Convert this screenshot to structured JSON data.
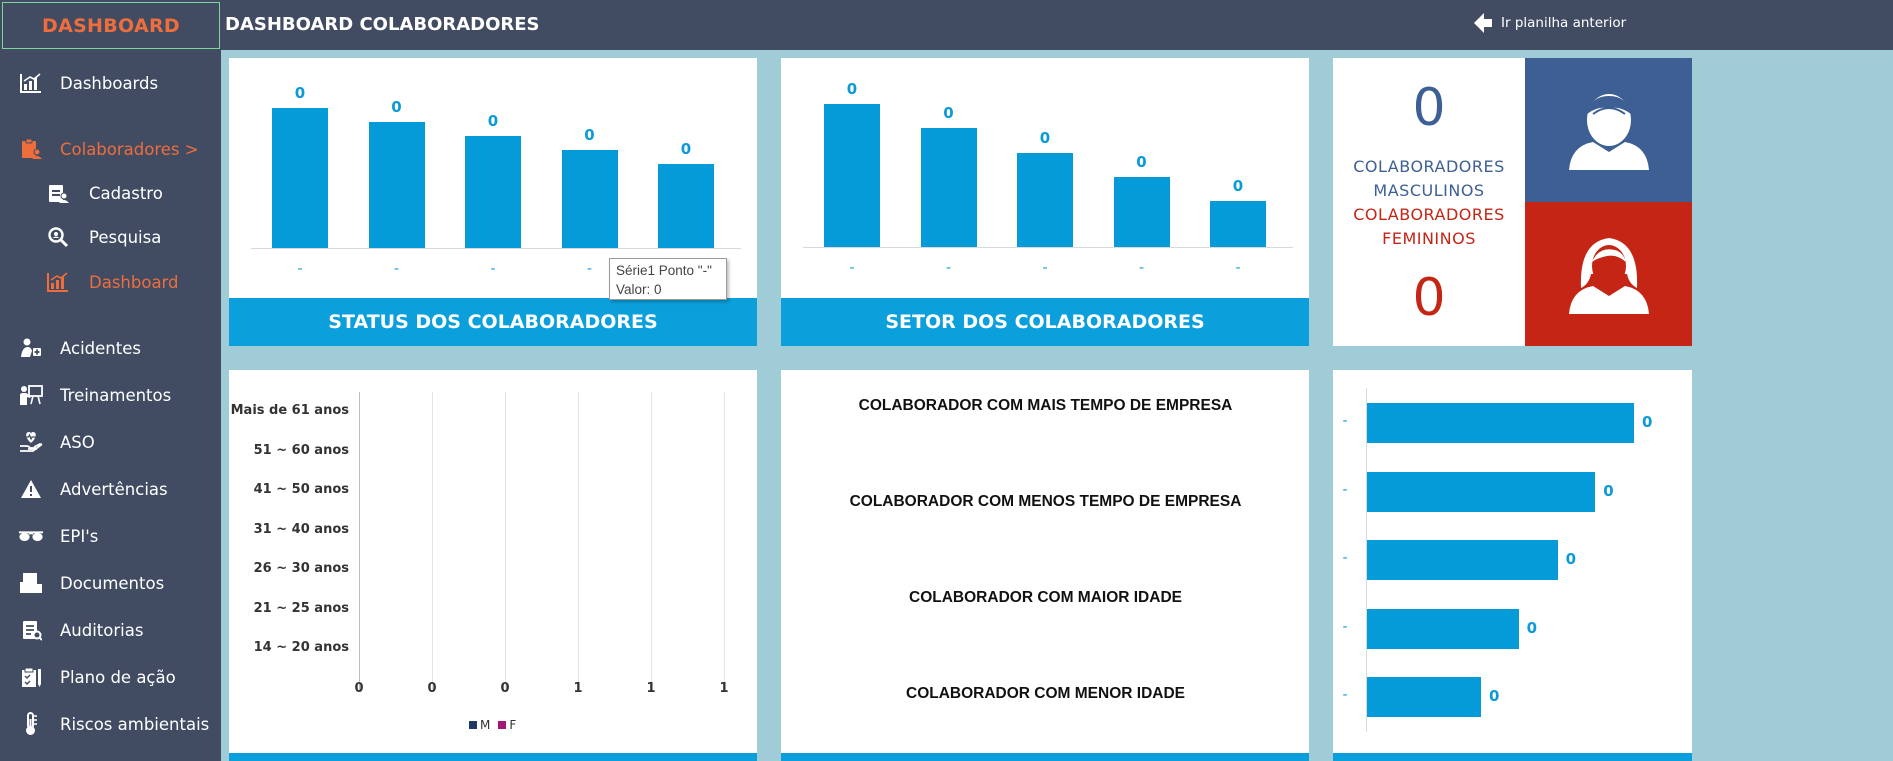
{
  "sidebar": {
    "logo": "DASHBOARD",
    "items": [
      {
        "label": "Dashboards",
        "icon": "chart-icon"
      },
      {
        "label": "Colaboradores >",
        "icon": "clipboard-user-icon"
      },
      {
        "label": "Cadastro",
        "icon": "register-icon"
      },
      {
        "label": "Pesquisa",
        "icon": "search-icon"
      },
      {
        "label": "Dashboard",
        "icon": "chart-icon"
      },
      {
        "label": "Acidentes",
        "icon": "accident-icon"
      },
      {
        "label": "Treinamentos",
        "icon": "training-icon"
      },
      {
        "label": "ASO",
        "icon": "health-icon"
      },
      {
        "label": "Advertências",
        "icon": "warning-icon"
      },
      {
        "label": "EPI's",
        "icon": "glasses-icon"
      },
      {
        "label": "Documentos",
        "icon": "documents-icon"
      },
      {
        "label": "Auditorias",
        "icon": "audit-icon"
      },
      {
        "label": "Plano de ação",
        "icon": "plan-icon"
      },
      {
        "label": "Riscos ambientais",
        "icon": "thermometer-icon"
      }
    ]
  },
  "header": {
    "title": "DASHBOARD COLABORADORES",
    "back_link": "Ir planilha anterior"
  },
  "status_chart": {
    "footer": "STATUS DOS COLABORADORES",
    "chart_data": {
      "type": "bar",
      "title": "STATUS DOS COLABORADORES",
      "categories": [
        "-",
        "-",
        "-",
        "-",
        "-"
      ],
      "values": [
        0,
        0,
        0,
        0,
        0
      ],
      "data_labels": [
        "0",
        "0",
        "0",
        "0",
        "0"
      ],
      "bar_heights_shown": [
        100,
        90,
        80,
        70,
        60
      ]
    },
    "tooltip": {
      "line1": "Série1 Ponto \"-\"",
      "line2": "Valor: 0"
    }
  },
  "setor_chart": {
    "footer": "SETOR DOS COLABORADORES",
    "chart_data": {
      "type": "bar",
      "title": "SETOR DOS COLABORADORES",
      "categories": [
        "-",
        "-",
        "-",
        "-",
        "-"
      ],
      "values": [
        0,
        0,
        0,
        0,
        0
      ],
      "data_labels": [
        "0",
        "0",
        "0",
        "0",
        "0"
      ],
      "bar_heights_shown": [
        100,
        83,
        66,
        49,
        32
      ]
    }
  },
  "gender": {
    "male_count": "0",
    "male_label_1": "COLABORADORES",
    "male_label_2": "MASCULINOS",
    "female_label_1": "COLABORADORES",
    "female_label_2": "FEMININOS",
    "female_count": "0",
    "male_color": "#3d5f94",
    "female_color": "#c42514"
  },
  "age_chart": {
    "chart_data": {
      "type": "bar",
      "orientation": "horizontal",
      "categories": [
        "Mais de 61 anos",
        "51 ~ 60 anos",
        "41 ~ 50 anos",
        "31 ~ 40 anos",
        "26 ~ 30 anos",
        "21 ~ 25 anos",
        "14 ~ 20 anos"
      ],
      "series": [
        {
          "name": "M",
          "values": [
            0,
            0,
            0,
            0,
            0,
            0,
            0
          ],
          "color": "#1f3864"
        },
        {
          "name": "F",
          "values": [
            0,
            0,
            0,
            0,
            0,
            0,
            0
          ],
          "color": "#a5167a"
        }
      ],
      "x_ticks": [
        "0",
        "0",
        "0",
        "1",
        "1",
        "1"
      ],
      "legend": [
        "M",
        "F"
      ]
    }
  },
  "ranking": {
    "titles": [
      "COLABORADOR COM MAIS TEMPO DE EMPRESA",
      "COLABORADOR COM MENOS TEMPO DE EMPRESA",
      "COLABORADOR COM MAIOR IDADE",
      "COLABORADOR COM MENOR IDADE"
    ]
  },
  "hbar_chart": {
    "chart_data": {
      "type": "bar",
      "orientation": "horizontal",
      "categories": [
        "-",
        "-",
        "-",
        "-",
        "-"
      ],
      "values": [
        0,
        0,
        0,
        0,
        0
      ],
      "data_labels": [
        "0",
        "0",
        "0",
        "0",
        "0"
      ],
      "bar_lengths_shown": [
        100,
        85.5,
        71.4,
        56.8,
        42.7
      ]
    }
  }
}
